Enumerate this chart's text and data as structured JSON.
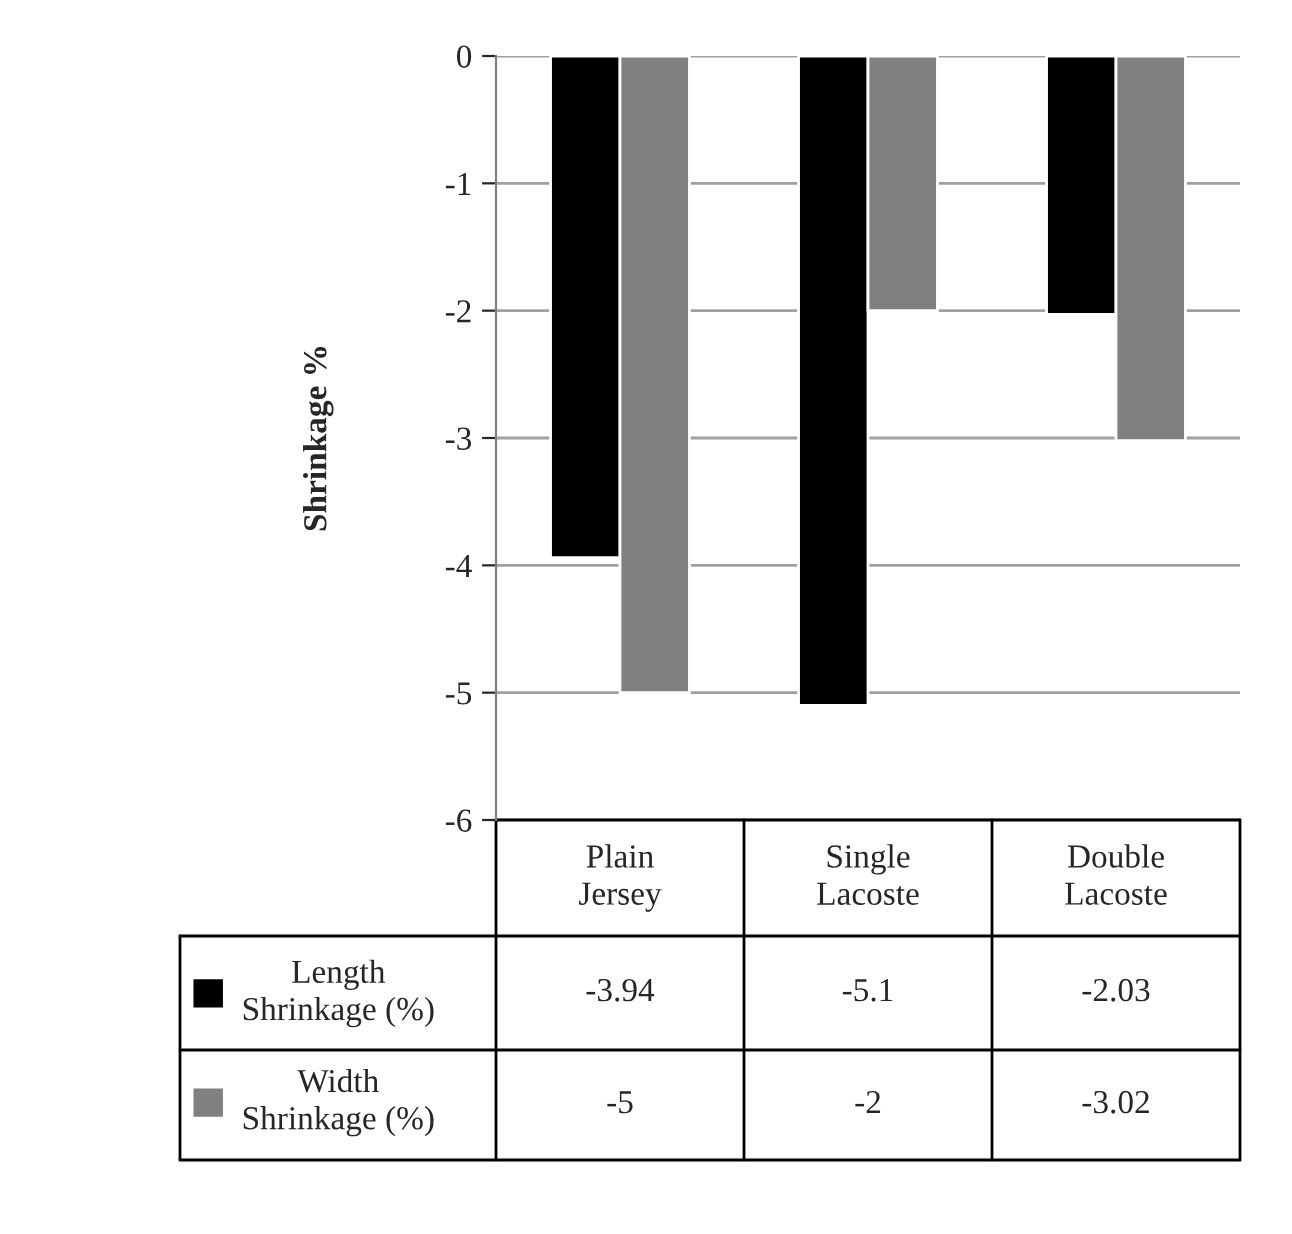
{
  "chart_data": {
    "type": "bar",
    "ylabel": "Shrinkage %",
    "categories": [
      "Plain\nJersey",
      "Single\nLacoste",
      "Double\nLacoste"
    ],
    "series": [
      {
        "name": "Length\nShrinkage (%)",
        "color": "#000000",
        "values": [
          -3.94,
          -5.1,
          -2.03
        ]
      },
      {
        "name": "Width\nShrinkage (%)",
        "color": "#808080",
        "values": [
          -5,
          -2,
          -3.02
        ]
      }
    ],
    "ylim": [
      -6,
      0
    ],
    "yticks": [
      0,
      -1,
      -2,
      -3,
      -4,
      -5,
      -6
    ],
    "grid": "y",
    "data_labels": true,
    "legend": "bottom left"
  }
}
